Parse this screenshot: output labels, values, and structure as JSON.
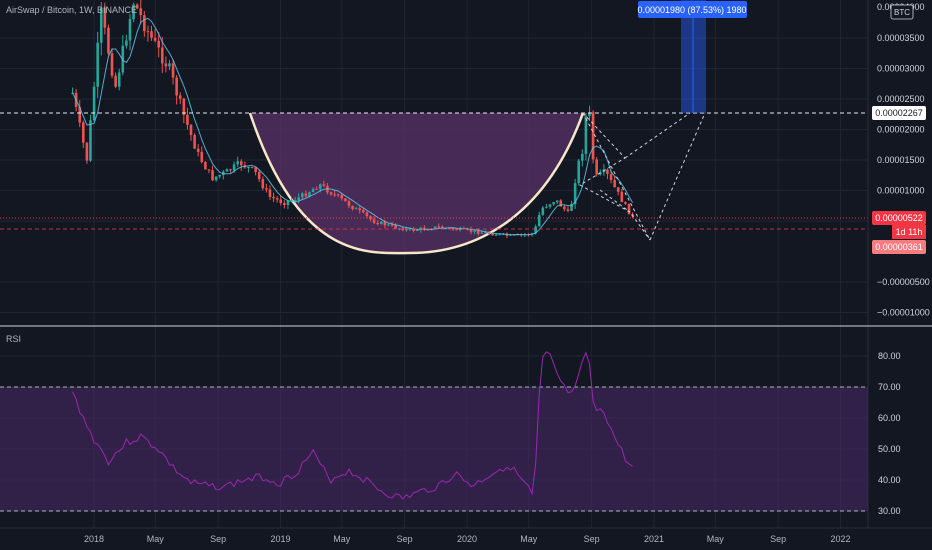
{
  "header": {
    "symbol_title": "AirSwap / Bitcoin, 1W, BINANCE",
    "currency_badge": "BTC"
  },
  "price_axis": {
    "ticks": [
      "0.00003500",
      "0.00003000",
      "0.00002500",
      "0.00002000",
      "0.00001500",
      "0.00001000",
      "0.00000500",
      "−0.00000500",
      "−0.00001000"
    ],
    "top_partial": "0.00004000"
  },
  "price_labels": {
    "resistance": "0.00002267",
    "last_price": "0.00000522",
    "countdown": "1d 11h",
    "target_low": "0.00000361"
  },
  "measure_tooltip": "0.00001980 (87.53%) 1980",
  "rsi_panel": {
    "label": "RSI",
    "ticks": [
      "80.00",
      "70.00",
      "60.00",
      "50.00",
      "40.00",
      "30.00"
    ]
  },
  "time_axis": {
    "ticks": [
      "2018",
      "May",
      "Sep",
      "2019",
      "May",
      "Sep",
      "2020",
      "May",
      "Sep",
      "2021",
      "May",
      "Sep",
      "2022"
    ]
  },
  "colors": {
    "background": "#131722",
    "up_candle": "#26a69a",
    "down_candle": "#ef5350",
    "rsi_line": "#9c27b0",
    "cup_fill": "#6a3a7a",
    "tooltip_bg": "#2962ff",
    "price_label_red": "#f23645"
  },
  "chart_data": {
    "type": "candlestick",
    "timeframe": "1W",
    "y_range_price": [
      -1.15e-05,
      4.05e-05
    ],
    "price_points": [
      {
        "date": "2017-11-20",
        "close": 2.6e-05
      },
      {
        "date": "2017-12-18",
        "close": 1.5e-05
      },
      {
        "date": "2018-01-15",
        "close": 3.9e-05
      },
      {
        "date": "2018-02-12",
        "close": 2.7e-05
      },
      {
        "date": "2018-03-19",
        "close": 4.1e-05
      },
      {
        "date": "2018-04-23",
        "close": 3.5e-05
      },
      {
        "date": "2018-05-28",
        "close": 3e-05
      },
      {
        "date": "2018-06-25",
        "close": 2.25e-05
      },
      {
        "date": "2018-07-23",
        "close": 1.6e-05
      },
      {
        "date": "2018-08-20",
        "close": 1.2e-05
      },
      {
        "date": "2018-09-17",
        "close": 1.3e-05
      },
      {
        "date": "2018-10-15",
        "close": 1.45e-05
      },
      {
        "date": "2018-11-12",
        "close": 1.3e-05
      },
      {
        "date": "2018-12-10",
        "close": 9e-06
      },
      {
        "date": "2019-01-07",
        "close": 8e-06
      },
      {
        "date": "2019-02-11",
        "close": 9e-06
      },
      {
        "date": "2019-03-18",
        "close": 1.1e-05
      },
      {
        "date": "2019-04-22",
        "close": 9e-06
      },
      {
        "date": "2019-05-27",
        "close": 7e-06
      },
      {
        "date": "2019-07-01",
        "close": 5e-06
      },
      {
        "date": "2019-08-12",
        "close": 4e-06
      },
      {
        "date": "2019-09-16",
        "close": 3.5e-06
      },
      {
        "date": "2019-11-04",
        "close": 4e-06
      },
      {
        "date": "2019-12-23",
        "close": 3.5e-06
      },
      {
        "date": "2020-02-10",
        "close": 3e-06
      },
      {
        "date": "2020-03-30",
        "close": 2.5e-06
      },
      {
        "date": "2020-05-11",
        "close": 3e-06
      },
      {
        "date": "2020-05-25",
        "close": 7e-06
      },
      {
        "date": "2020-06-22",
        "close": 8.5e-06
      },
      {
        "date": "2020-07-20",
        "close": 6e-06
      },
      {
        "date": "2020-08-03",
        "close": 1.35e-05
      },
      {
        "date": "2020-08-17",
        "close": 1.75e-05
      },
      {
        "date": "2020-08-24",
        "close": 2.6e-05
      },
      {
        "date": "2020-09-07",
        "close": 1.2e-05
      },
      {
        "date": "2020-09-28",
        "close": 1.3e-05
      },
      {
        "date": "2020-10-19",
        "close": 1e-05
      },
      {
        "date": "2020-11-09",
        "close": 7e-06
      },
      {
        "date": "2020-11-23",
        "close": 5.22e-06
      }
    ],
    "cup_rim_level": 2.267e-05,
    "last_price": 5.22e-06,
    "target_low": 3.61e-06,
    "measure": {
      "change": 1.98e-05,
      "percent": 87.53,
      "value": 1980
    },
    "rsi": {
      "y_range": [
        27,
        87
      ],
      "overbought": 70,
      "oversold": 30,
      "points": [
        {
          "date": "2017-11-20",
          "value": 68
        },
        {
          "date": "2017-12-25",
          "value": 55
        },
        {
          "date": "2018-01-29",
          "value": 46
        },
        {
          "date": "2018-03-05",
          "value": 52
        },
        {
          "date": "2018-04-02",
          "value": 54
        },
        {
          "date": "2018-05-07",
          "value": 50
        },
        {
          "date": "2018-06-04",
          "value": 44
        },
        {
          "date": "2018-07-09",
          "value": 39
        },
        {
          "date": "2018-08-13",
          "value": 38
        },
        {
          "date": "2018-09-17",
          "value": 38
        },
        {
          "date": "2018-10-22",
          "value": 40
        },
        {
          "date": "2018-11-26",
          "value": 41
        },
        {
          "date": "2018-12-31",
          "value": 39
        },
        {
          "date": "2019-02-04",
          "value": 43
        },
        {
          "date": "2019-03-04",
          "value": 49
        },
        {
          "date": "2019-04-08",
          "value": 40
        },
        {
          "date": "2019-05-13",
          "value": 43
        },
        {
          "date": "2019-06-17",
          "value": 40
        },
        {
          "date": "2019-07-22",
          "value": 36
        },
        {
          "date": "2019-08-26",
          "value": 34
        },
        {
          "date": "2019-09-30",
          "value": 36
        },
        {
          "date": "2019-11-04",
          "value": 38
        },
        {
          "date": "2019-12-09",
          "value": 42
        },
        {
          "date": "2020-01-13",
          "value": 38
        },
        {
          "date": "2020-02-17",
          "value": 42
        },
        {
          "date": "2020-03-23",
          "value": 45
        },
        {
          "date": "2020-04-27",
          "value": 38
        },
        {
          "date": "2020-05-11",
          "value": 34
        },
        {
          "date": "2020-05-25",
          "value": 78
        },
        {
          "date": "2020-06-08",
          "value": 81
        },
        {
          "date": "2020-07-06",
          "value": 70
        },
        {
          "date": "2020-07-27",
          "value": 67
        },
        {
          "date": "2020-08-24",
          "value": 83
        },
        {
          "date": "2020-09-07",
          "value": 60
        },
        {
          "date": "2020-09-21",
          "value": 64
        },
        {
          "date": "2020-10-12",
          "value": 55
        },
        {
          "date": "2020-11-09",
          "value": 46
        },
        {
          "date": "2020-11-23",
          "value": 43
        }
      ]
    }
  }
}
